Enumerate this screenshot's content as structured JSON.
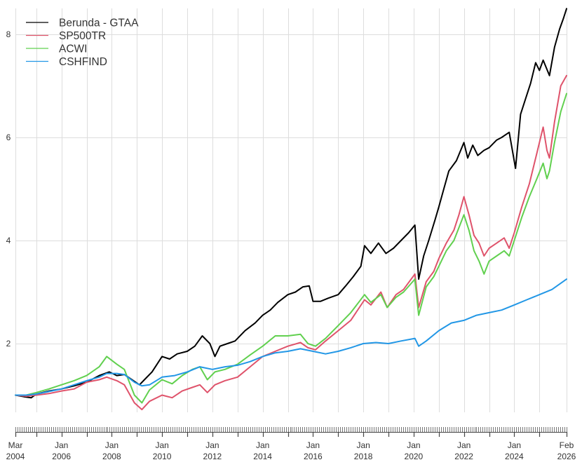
{
  "chart_data": {
    "type": "line",
    "title": "",
    "xlabel": "",
    "ylabel": "",
    "xlim": [
      2004.17,
      2026.08
    ],
    "ylim": [
      0.7,
      8.5
    ],
    "grid": true,
    "legend_position": "top-left",
    "y_ticks": [
      2,
      4,
      6,
      8
    ],
    "y_tick_labels": [
      "2",
      "4",
      "6",
      "8"
    ],
    "x_ticks": [
      {
        "x": 2004.17,
        "label_top": "Mar",
        "label_bottom": "2004"
      },
      {
        "x": 2006.0,
        "label_top": "Jan",
        "label_bottom": "2006"
      },
      {
        "x": 2008.0,
        "label_top": "Jan",
        "label_bottom": "2008"
      },
      {
        "x": 2010.0,
        "label_top": "Jan",
        "label_bottom": "2010"
      },
      {
        "x": 2012.0,
        "label_top": "Jan",
        "label_bottom": "2012"
      },
      {
        "x": 2014.0,
        "label_top": "Jan",
        "label_bottom": "2014"
      },
      {
        "x": 2016.0,
        "label_top": "Jan",
        "label_bottom": "2016"
      },
      {
        "x": 2018.0,
        "label_top": "Jan",
        "label_bottom": "2018"
      },
      {
        "x": 2020.0,
        "label_top": "Jan",
        "label_bottom": "2020"
      },
      {
        "x": 2022.0,
        "label_top": "Jan",
        "label_bottom": "2022"
      },
      {
        "x": 2024.0,
        "label_top": "Jan",
        "label_bottom": "2024"
      },
      {
        "x": 2026.08,
        "label_top": "Feb",
        "label_bottom": "2026"
      }
    ],
    "x_gridlines": [
      2004.17,
      2005,
      2006,
      2007,
      2008,
      2009,
      2010,
      2011,
      2012,
      2013,
      2014,
      2015,
      2016,
      2017,
      2018,
      2019,
      2020,
      2021,
      2022,
      2023,
      2024,
      2025,
      2026.08
    ],
    "series": [
      {
        "name": "Berunda - GTAA",
        "color": "#000000",
        "points": [
          [
            2004.17,
            1.0
          ],
          [
            2004.5,
            0.97
          ],
          [
            2004.8,
            0.95
          ],
          [
            2005.0,
            1.02
          ],
          [
            2005.5,
            1.08
          ],
          [
            2006.0,
            1.12
          ],
          [
            2006.5,
            1.18
          ],
          [
            2007.0,
            1.25
          ],
          [
            2007.5,
            1.38
          ],
          [
            2007.9,
            1.45
          ],
          [
            2008.2,
            1.38
          ],
          [
            2008.5,
            1.4
          ],
          [
            2008.8,
            1.3
          ],
          [
            2009.1,
            1.2
          ],
          [
            2009.3,
            1.3
          ],
          [
            2009.6,
            1.45
          ],
          [
            2010.0,
            1.75
          ],
          [
            2010.3,
            1.7
          ],
          [
            2010.6,
            1.8
          ],
          [
            2011.0,
            1.85
          ],
          [
            2011.3,
            1.95
          ],
          [
            2011.6,
            2.15
          ],
          [
            2011.9,
            2.0
          ],
          [
            2012.1,
            1.75
          ],
          [
            2012.3,
            1.95
          ],
          [
            2012.6,
            2.0
          ],
          [
            2012.9,
            2.05
          ],
          [
            2013.3,
            2.25
          ],
          [
            2013.7,
            2.4
          ],
          [
            2014.0,
            2.55
          ],
          [
            2014.3,
            2.65
          ],
          [
            2014.6,
            2.8
          ],
          [
            2015.0,
            2.95
          ],
          [
            2015.3,
            3.0
          ],
          [
            2015.6,
            3.1
          ],
          [
            2015.85,
            3.12
          ],
          [
            2016.0,
            2.82
          ],
          [
            2016.3,
            2.82
          ],
          [
            2016.6,
            2.88
          ],
          [
            2017.0,
            2.95
          ],
          [
            2017.3,
            3.12
          ],
          [
            2017.6,
            3.3
          ],
          [
            2017.9,
            3.5
          ],
          [
            2018.05,
            3.9
          ],
          [
            2018.3,
            3.75
          ],
          [
            2018.6,
            3.95
          ],
          [
            2018.9,
            3.75
          ],
          [
            2019.2,
            3.85
          ],
          [
            2019.5,
            4.0
          ],
          [
            2019.8,
            4.15
          ],
          [
            2020.05,
            4.3
          ],
          [
            2020.2,
            3.25
          ],
          [
            2020.4,
            3.7
          ],
          [
            2020.6,
            4.0
          ],
          [
            2020.85,
            4.4
          ],
          [
            2021.0,
            4.65
          ],
          [
            2021.2,
            5.0
          ],
          [
            2021.4,
            5.35
          ],
          [
            2021.7,
            5.55
          ],
          [
            2022.0,
            5.9
          ],
          [
            2022.15,
            5.6
          ],
          [
            2022.35,
            5.85
          ],
          [
            2022.55,
            5.65
          ],
          [
            2022.8,
            5.75
          ],
          [
            2023.0,
            5.8
          ],
          [
            2023.3,
            5.95
          ],
          [
            2023.5,
            6.0
          ],
          [
            2023.8,
            6.1
          ],
          [
            2024.05,
            5.4
          ],
          [
            2024.25,
            6.45
          ],
          [
            2024.45,
            6.75
          ],
          [
            2024.65,
            7.05
          ],
          [
            2024.85,
            7.45
          ],
          [
            2025.0,
            7.3
          ],
          [
            2025.15,
            7.5
          ],
          [
            2025.4,
            7.2
          ],
          [
            2025.6,
            7.75
          ],
          [
            2025.8,
            8.1
          ],
          [
            2025.95,
            8.3
          ],
          [
            2026.08,
            8.5
          ]
        ]
      },
      {
        "name": "SP500TR",
        "color": "#DF536B",
        "points": [
          [
            2004.17,
            1.0
          ],
          [
            2004.6,
            0.98
          ],
          [
            2005.0,
            1.0
          ],
          [
            2005.5,
            1.03
          ],
          [
            2006.0,
            1.08
          ],
          [
            2006.5,
            1.12
          ],
          [
            2007.0,
            1.25
          ],
          [
            2007.5,
            1.3
          ],
          [
            2007.8,
            1.35
          ],
          [
            2008.2,
            1.28
          ],
          [
            2008.5,
            1.2
          ],
          [
            2008.9,
            0.85
          ],
          [
            2009.2,
            0.72
          ],
          [
            2009.5,
            0.88
          ],
          [
            2010.0,
            1.0
          ],
          [
            2010.4,
            0.95
          ],
          [
            2010.8,
            1.08
          ],
          [
            2011.2,
            1.15
          ],
          [
            2011.5,
            1.2
          ],
          [
            2011.8,
            1.05
          ],
          [
            2012.1,
            1.2
          ],
          [
            2012.5,
            1.28
          ],
          [
            2013.0,
            1.35
          ],
          [
            2013.5,
            1.55
          ],
          [
            2014.0,
            1.75
          ],
          [
            2014.5,
            1.85
          ],
          [
            2015.0,
            1.95
          ],
          [
            2015.5,
            2.02
          ],
          [
            2015.8,
            1.92
          ],
          [
            2016.1,
            1.88
          ],
          [
            2016.5,
            2.05
          ],
          [
            2017.0,
            2.25
          ],
          [
            2017.5,
            2.45
          ],
          [
            2018.05,
            2.85
          ],
          [
            2018.3,
            2.75
          ],
          [
            2018.7,
            3.0
          ],
          [
            2018.95,
            2.7
          ],
          [
            2019.3,
            2.95
          ],
          [
            2019.6,
            3.05
          ],
          [
            2020.05,
            3.35
          ],
          [
            2020.2,
            2.7
          ],
          [
            2020.5,
            3.2
          ],
          [
            2020.8,
            3.4
          ],
          [
            2021.0,
            3.65
          ],
          [
            2021.3,
            3.95
          ],
          [
            2021.6,
            4.2
          ],
          [
            2021.8,
            4.5
          ],
          [
            2022.0,
            4.85
          ],
          [
            2022.2,
            4.5
          ],
          [
            2022.4,
            4.1
          ],
          [
            2022.6,
            3.95
          ],
          [
            2022.8,
            3.7
          ],
          [
            2023.0,
            3.85
          ],
          [
            2023.3,
            3.95
          ],
          [
            2023.6,
            4.05
          ],
          [
            2023.8,
            3.85
          ],
          [
            2024.0,
            4.15
          ],
          [
            2024.3,
            4.65
          ],
          [
            2024.6,
            5.1
          ],
          [
            2024.9,
            5.7
          ],
          [
            2025.15,
            6.2
          ],
          [
            2025.3,
            5.75
          ],
          [
            2025.4,
            5.6
          ],
          [
            2025.6,
            6.3
          ],
          [
            2025.85,
            7.0
          ],
          [
            2026.08,
            7.2
          ]
        ]
      },
      {
        "name": "ACWI",
        "color": "#61D04F",
        "points": [
          [
            2004.17,
            1.0
          ],
          [
            2004.6,
            1.0
          ],
          [
            2005.0,
            1.05
          ],
          [
            2005.5,
            1.12
          ],
          [
            2006.0,
            1.2
          ],
          [
            2006.5,
            1.28
          ],
          [
            2007.0,
            1.38
          ],
          [
            2007.5,
            1.55
          ],
          [
            2007.8,
            1.75
          ],
          [
            2008.2,
            1.6
          ],
          [
            2008.5,
            1.5
          ],
          [
            2008.9,
            1.0
          ],
          [
            2009.2,
            0.85
          ],
          [
            2009.5,
            1.1
          ],
          [
            2010.0,
            1.3
          ],
          [
            2010.4,
            1.22
          ],
          [
            2010.8,
            1.38
          ],
          [
            2011.2,
            1.5
          ],
          [
            2011.5,
            1.55
          ],
          [
            2011.8,
            1.3
          ],
          [
            2012.1,
            1.45
          ],
          [
            2012.5,
            1.5
          ],
          [
            2013.0,
            1.6
          ],
          [
            2013.5,
            1.78
          ],
          [
            2014.0,
            1.95
          ],
          [
            2014.5,
            2.15
          ],
          [
            2015.0,
            2.15
          ],
          [
            2015.5,
            2.18
          ],
          [
            2015.8,
            2.0
          ],
          [
            2016.1,
            1.95
          ],
          [
            2016.5,
            2.1
          ],
          [
            2017.0,
            2.35
          ],
          [
            2017.5,
            2.6
          ],
          [
            2018.05,
            2.95
          ],
          [
            2018.3,
            2.8
          ],
          [
            2018.7,
            2.95
          ],
          [
            2018.95,
            2.7
          ],
          [
            2019.3,
            2.9
          ],
          [
            2019.6,
            3.0
          ],
          [
            2020.05,
            3.25
          ],
          [
            2020.2,
            2.55
          ],
          [
            2020.5,
            3.1
          ],
          [
            2020.8,
            3.3
          ],
          [
            2021.0,
            3.5
          ],
          [
            2021.3,
            3.8
          ],
          [
            2021.6,
            4.0
          ],
          [
            2021.8,
            4.25
          ],
          [
            2022.0,
            4.5
          ],
          [
            2022.2,
            4.2
          ],
          [
            2022.4,
            3.8
          ],
          [
            2022.6,
            3.6
          ],
          [
            2022.8,
            3.35
          ],
          [
            2023.0,
            3.6
          ],
          [
            2023.3,
            3.7
          ],
          [
            2023.6,
            3.8
          ],
          [
            2023.8,
            3.7
          ],
          [
            2024.0,
            4.0
          ],
          [
            2024.3,
            4.45
          ],
          [
            2024.6,
            4.85
          ],
          [
            2024.9,
            5.2
          ],
          [
            2025.15,
            5.5
          ],
          [
            2025.3,
            5.2
          ],
          [
            2025.4,
            5.35
          ],
          [
            2025.6,
            5.9
          ],
          [
            2025.85,
            6.5
          ],
          [
            2026.08,
            6.85
          ]
        ]
      },
      {
        "name": "CSHFIND",
        "color": "#2297E6",
        "points": [
          [
            2004.17,
            1.0
          ],
          [
            2004.6,
            1.0
          ],
          [
            2005.0,
            1.02
          ],
          [
            2005.5,
            1.07
          ],
          [
            2006.0,
            1.12
          ],
          [
            2006.5,
            1.2
          ],
          [
            2007.0,
            1.28
          ],
          [
            2007.5,
            1.35
          ],
          [
            2007.8,
            1.42
          ],
          [
            2008.2,
            1.42
          ],
          [
            2008.5,
            1.4
          ],
          [
            2008.9,
            1.25
          ],
          [
            2009.2,
            1.18
          ],
          [
            2009.5,
            1.2
          ],
          [
            2010.0,
            1.35
          ],
          [
            2010.5,
            1.38
          ],
          [
            2011.0,
            1.45
          ],
          [
            2011.5,
            1.55
          ],
          [
            2012.0,
            1.5
          ],
          [
            2012.5,
            1.55
          ],
          [
            2013.0,
            1.58
          ],
          [
            2013.5,
            1.65
          ],
          [
            2014.0,
            1.75
          ],
          [
            2014.5,
            1.82
          ],
          [
            2015.0,
            1.85
          ],
          [
            2015.5,
            1.9
          ],
          [
            2016.0,
            1.85
          ],
          [
            2016.5,
            1.8
          ],
          [
            2017.0,
            1.85
          ],
          [
            2017.5,
            1.92
          ],
          [
            2018.0,
            2.0
          ],
          [
            2018.5,
            2.02
          ],
          [
            2019.0,
            2.0
          ],
          [
            2019.5,
            2.05
          ],
          [
            2020.05,
            2.1
          ],
          [
            2020.2,
            1.95
          ],
          [
            2020.5,
            2.05
          ],
          [
            2021.0,
            2.25
          ],
          [
            2021.5,
            2.4
          ],
          [
            2022.0,
            2.45
          ],
          [
            2022.5,
            2.55
          ],
          [
            2023.0,
            2.6
          ],
          [
            2023.5,
            2.65
          ],
          [
            2024.0,
            2.75
          ],
          [
            2024.5,
            2.85
          ],
          [
            2025.0,
            2.95
          ],
          [
            2025.5,
            3.05
          ],
          [
            2026.08,
            3.25
          ]
        ]
      }
    ]
  }
}
